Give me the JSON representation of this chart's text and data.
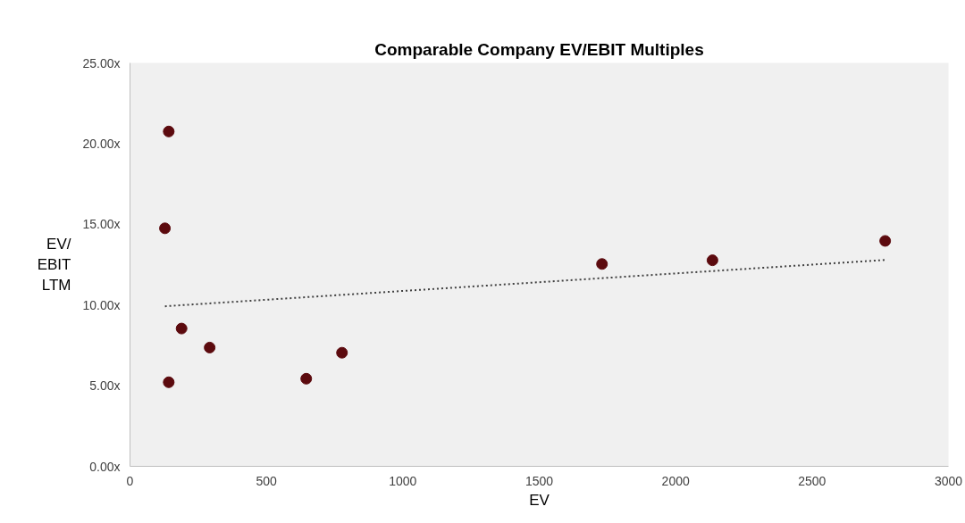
{
  "chart_data": {
    "type": "scatter",
    "title": "Comparable Company EV/EBIT Multiples",
    "xlabel": "EV",
    "ylabel": "EV/\nEBIT\nLTM",
    "xlim": [
      0,
      3000
    ],
    "xticks": [
      0,
      500,
      1000,
      1500,
      2000,
      2500,
      3000
    ],
    "ylim": [
      0,
      25
    ],
    "yticks": [
      {
        "value": 0,
        "label": "0.00x"
      },
      {
        "value": 5,
        "label": "5.00x"
      },
      {
        "value": 10,
        "label": "10.00x"
      },
      {
        "value": 15,
        "label": "15.00x"
      },
      {
        "value": 20,
        "label": "20.00x"
      },
      {
        "value": 25,
        "label": "25.00x"
      }
    ],
    "grid": false,
    "marker": "circle",
    "series": [
      {
        "color": "#5c0a0e",
        "x": [
          142,
          128,
          142,
          189,
          292,
          646,
          777,
          1730,
          2135,
          2768
        ],
        "values": [
          20.75,
          14.75,
          5.21,
          8.54,
          7.36,
          5.43,
          7.04,
          12.54,
          12.77,
          13.97
        ]
      },
      {
        "type": "line",
        "color": "#404040",
        "line_style": "dotted",
        "marker": "none",
        "x": [
          128,
          2768
        ],
        "values": [
          9.92,
          12.79
        ]
      }
    ]
  }
}
